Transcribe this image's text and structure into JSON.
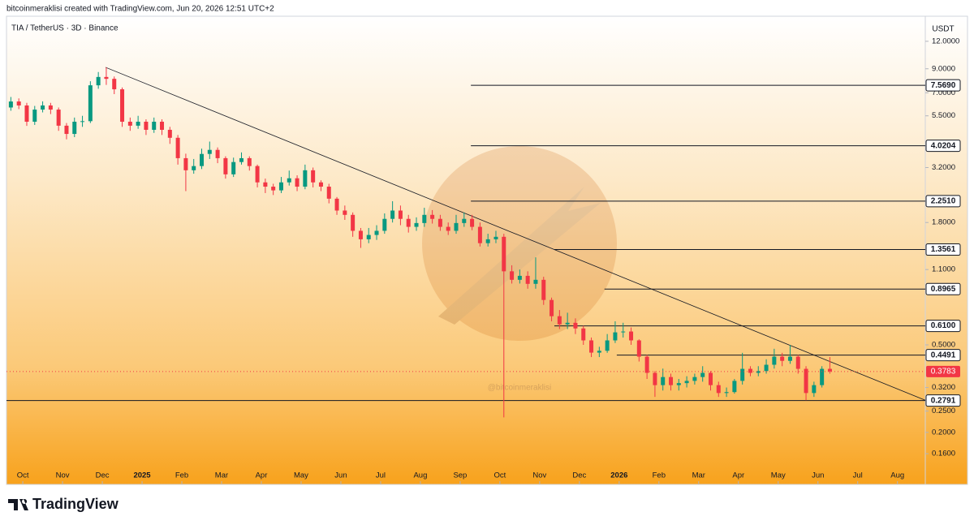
{
  "header": "bitcoinmeraklisi created with TradingView.com, Jun 20, 2026 12:51 UTC+2",
  "footer": {
    "brand": "TradingView"
  },
  "chart_data": {
    "type": "candlestick",
    "title": "TIA / TetherUS · 3D · Binance",
    "currency": "USDT",
    "watermark": "@bitcoinmeraklisi",
    "log_scale": true,
    "up_color": "#089981",
    "down_color": "#f23645",
    "xlim": [
      -0.41,
      22.7
    ],
    "ylim": [
      0.116,
      15.6
    ],
    "xticks": [
      {
        "value": 0,
        "label": "Oct"
      },
      {
        "value": 1,
        "label": "Nov"
      },
      {
        "value": 2,
        "label": "Dec"
      },
      {
        "value": 3,
        "label": "2025"
      },
      {
        "value": 4,
        "label": "Feb"
      },
      {
        "value": 5,
        "label": "Mar"
      },
      {
        "value": 6,
        "label": "Apr"
      },
      {
        "value": 7,
        "label": "May"
      },
      {
        "value": 8,
        "label": "Jun"
      },
      {
        "value": 9,
        "label": "Jul"
      },
      {
        "value": 10,
        "label": "Aug"
      },
      {
        "value": 11,
        "label": "Sep"
      },
      {
        "value": 12,
        "label": "Oct"
      },
      {
        "value": 13,
        "label": "Nov"
      },
      {
        "value": 14,
        "label": "Dec"
      },
      {
        "value": 15,
        "label": "2026"
      },
      {
        "value": 16,
        "label": "Feb"
      },
      {
        "value": 17,
        "label": "Mar"
      },
      {
        "value": 18,
        "label": "Apr"
      },
      {
        "value": 19,
        "label": "May"
      },
      {
        "value": 20,
        "label": "Jun"
      },
      {
        "value": 21,
        "label": "Jul"
      },
      {
        "value": 22,
        "label": "Aug"
      }
    ],
    "yticks": [
      {
        "value": 12,
        "label": "12.0000"
      },
      {
        "value": 9,
        "label": "9.0000"
      },
      {
        "value": 7,
        "label": "7.0000"
      },
      {
        "value": 5.5,
        "label": "5.5000"
      },
      {
        "value": 3.2,
        "label": "3.2000"
      },
      {
        "value": 1.8,
        "label": "1.8000"
      },
      {
        "value": 1.1,
        "label": "1.1000"
      },
      {
        "value": 0.5,
        "label": "0.5000"
      },
      {
        "value": 0.32,
        "label": "0.3200"
      },
      {
        "value": 0.25,
        "label": "0.2500"
      },
      {
        "value": 0.2,
        "label": "0.2000"
      },
      {
        "value": 0.16,
        "label": "0.1600"
      }
    ],
    "levels": [
      {
        "value": 7.569,
        "label": "7.5690",
        "x_start": 11.27
      },
      {
        "value": 4.0204,
        "label": "4.0204",
        "x_start": 11.27
      },
      {
        "value": 2.251,
        "label": "2.2510",
        "x_start": 11.27
      },
      {
        "value": 1.3561,
        "label": "1.3561",
        "x_start": 13.37
      },
      {
        "value": 0.8965,
        "label": "0.8965",
        "x_start": 14.63
      },
      {
        "value": 0.61,
        "label": "0.6100",
        "x_start": 13.37
      },
      {
        "value": 0.4491,
        "label": "0.4491",
        "x_start": 14.94
      },
      {
        "value": 0.2791,
        "label": "0.2791",
        "x_start": -0.41
      }
    ],
    "trendline": {
      "x": [
        2.08,
        22.7
      ],
      "y": [
        9.14,
        0.28
      ]
    },
    "x": [
      -0.3,
      -0.1,
      0.1,
      0.3,
      0.5,
      0.7,
      0.9,
      1.1,
      1.3,
      1.5,
      1.7,
      1.9,
      2.1,
      2.3,
      2.5,
      2.7,
      2.9,
      3.1,
      3.3,
      3.5,
      3.7,
      3.9,
      4.1,
      4.3,
      4.5,
      4.7,
      4.9,
      5.1,
      5.3,
      5.5,
      5.7,
      5.9,
      6.1,
      6.3,
      6.5,
      6.7,
      6.9,
      7.1,
      7.3,
      7.5,
      7.7,
      7.9,
      8.1,
      8.3,
      8.5,
      8.7,
      8.9,
      9.1,
      9.3,
      9.5,
      9.7,
      9.9,
      10.1,
      10.3,
      10.5,
      10.7,
      10.9,
      11.1,
      11.3,
      11.5,
      11.7,
      11.9,
      12.1,
      12.3,
      12.5,
      12.7,
      12.9,
      13.1,
      13.3,
      13.5,
      13.7,
      13.9,
      14.1,
      14.3,
      14.5,
      14.7,
      14.9,
      15.1,
      15.3,
      15.5,
      15.7,
      15.9,
      16.1,
      16.3,
      16.5,
      16.7,
      16.9,
      17.1,
      17.3,
      17.5,
      17.7,
      17.9,
      18.1,
      18.3,
      18.5,
      18.7,
      18.9,
      19.1,
      19.3,
      19.5,
      19.7,
      19.9,
      20.1,
      20.3
    ],
    "open": [
      6.0,
      6.39,
      6.13,
      5.17,
      5.87,
      6.13,
      5.87,
      4.96,
      4.55,
      5.17,
      5.2,
      7.57,
      8.26,
      8.1,
      7.26,
      5.17,
      4.96,
      5.17,
      4.75,
      5.17,
      4.75,
      4.37,
      3.53,
      3.11,
      3.25,
      3.69,
      3.85,
      3.53,
      2.98,
      3.39,
      3.53,
      3.25,
      2.74,
      2.62,
      2.52,
      2.74,
      2.86,
      2.62,
      3.11,
      2.74,
      2.62,
      2.31,
      2.04,
      1.95,
      1.65,
      1.51,
      1.58,
      1.65,
      1.87,
      2.04,
      1.87,
      1.72,
      1.79,
      1.95,
      1.87,
      1.72,
      1.65,
      1.79,
      1.87,
      1.72,
      1.45,
      1.51,
      1.55,
      1.08,
      0.988,
      1.03,
      0.947,
      0.988,
      0.8,
      0.675,
      0.62,
      0.63,
      0.594,
      0.524,
      0.461,
      0.47,
      0.524,
      0.57,
      0.575,
      0.524,
      0.442,
      0.373,
      0.328,
      0.357,
      0.328,
      0.335,
      0.343,
      0.357,
      0.373,
      0.328,
      0.302,
      0.305,
      0.343,
      0.389,
      0.373,
      0.38,
      0.406,
      0.442,
      0.423,
      0.442,
      0.389,
      0.302,
      0.328,
      0.389
    ],
    "high": [
      6.7,
      6.6,
      6.3,
      6.1,
      6.4,
      6.3,
      6.0,
      5.1,
      5.4,
      5.5,
      7.9,
      8.7,
      9.14,
      8.3,
      7.4,
      5.4,
      5.5,
      5.3,
      5.4,
      5.3,
      4.9,
      4.5,
      3.7,
      3.5,
      3.9,
      4.2,
      3.95,
      3.6,
      3.55,
      3.75,
      3.6,
      3.3,
      2.85,
      2.7,
      2.9,
      3.1,
      2.95,
      3.3,
      3.2,
      2.8,
      2.7,
      2.35,
      2.15,
      2.0,
      1.7,
      1.7,
      1.75,
      1.98,
      2.25,
      2.15,
      1.95,
      1.9,
      2.1,
      2.05,
      1.95,
      1.8,
      1.95,
      2.0,
      1.95,
      1.8,
      1.6,
      1.65,
      1.6,
      1.15,
      1.1,
      1.08,
      1.25,
      1.02,
      0.82,
      0.72,
      0.7,
      0.66,
      0.61,
      0.54,
      0.49,
      0.56,
      0.64,
      0.63,
      0.6,
      0.53,
      0.45,
      0.38,
      0.39,
      0.37,
      0.35,
      0.36,
      0.37,
      0.4,
      0.38,
      0.34,
      0.32,
      0.35,
      0.46,
      0.4,
      0.4,
      0.43,
      0.48,
      0.46,
      0.5,
      0.45,
      0.4,
      0.34,
      0.4,
      0.44
    ],
    "low": [
      5.8,
      5.9,
      4.95,
      5.0,
      5.7,
      5.6,
      4.7,
      4.3,
      4.4,
      4.9,
      5.1,
      7.3,
      7.6,
      6.9,
      4.9,
      4.7,
      4.8,
      4.5,
      4.6,
      4.5,
      4.1,
      3.3,
      2.5,
      3.0,
      3.15,
      3.5,
      3.35,
      2.85,
      2.9,
      3.3,
      3.1,
      2.6,
      2.45,
      2.4,
      2.45,
      2.65,
      2.5,
      2.55,
      2.6,
      2.5,
      2.2,
      1.95,
      1.85,
      1.55,
      1.38,
      1.45,
      1.5,
      1.6,
      1.8,
      1.75,
      1.62,
      1.65,
      1.72,
      1.78,
      1.65,
      1.58,
      1.6,
      1.72,
      1.66,
      1.4,
      1.4,
      1.45,
      0.234,
      0.95,
      0.95,
      0.9,
      0.9,
      0.76,
      0.64,
      0.59,
      0.59,
      0.56,
      0.5,
      0.44,
      0.44,
      0.46,
      0.51,
      0.54,
      0.5,
      0.42,
      0.35,
      0.29,
      0.31,
      0.31,
      0.31,
      0.32,
      0.33,
      0.34,
      0.31,
      0.29,
      0.29,
      0.3,
      0.33,
      0.36,
      0.36,
      0.37,
      0.39,
      0.4,
      0.41,
      0.37,
      0.28,
      0.29,
      0.32,
      0.37
    ],
    "close": [
      6.39,
      6.13,
      5.17,
      5.87,
      6.13,
      5.87,
      4.96,
      4.55,
      5.17,
      5.2,
      7.57,
      8.26,
      8.1,
      7.26,
      5.17,
      4.96,
      5.17,
      4.75,
      5.17,
      4.75,
      4.37,
      3.53,
      3.11,
      3.25,
      3.69,
      3.85,
      3.53,
      2.98,
      3.39,
      3.53,
      3.25,
      2.74,
      2.62,
      2.52,
      2.74,
      2.86,
      2.62,
      3.11,
      2.74,
      2.62,
      2.31,
      2.04,
      1.95,
      1.65,
      1.51,
      1.58,
      1.65,
      1.87,
      2.04,
      1.87,
      1.72,
      1.79,
      1.95,
      1.87,
      1.72,
      1.65,
      1.79,
      1.87,
      1.72,
      1.45,
      1.51,
      1.55,
      1.08,
      0.988,
      1.03,
      0.947,
      0.988,
      0.8,
      0.675,
      0.62,
      0.63,
      0.594,
      0.524,
      0.461,
      0.47,
      0.524,
      0.57,
      0.575,
      0.524,
      0.442,
      0.373,
      0.328,
      0.357,
      0.328,
      0.335,
      0.343,
      0.357,
      0.373,
      0.328,
      0.302,
      0.305,
      0.343,
      0.389,
      0.373,
      0.38,
      0.406,
      0.442,
      0.423,
      0.442,
      0.389,
      0.302,
      0.328,
      0.389,
      0.3783
    ]
  }
}
